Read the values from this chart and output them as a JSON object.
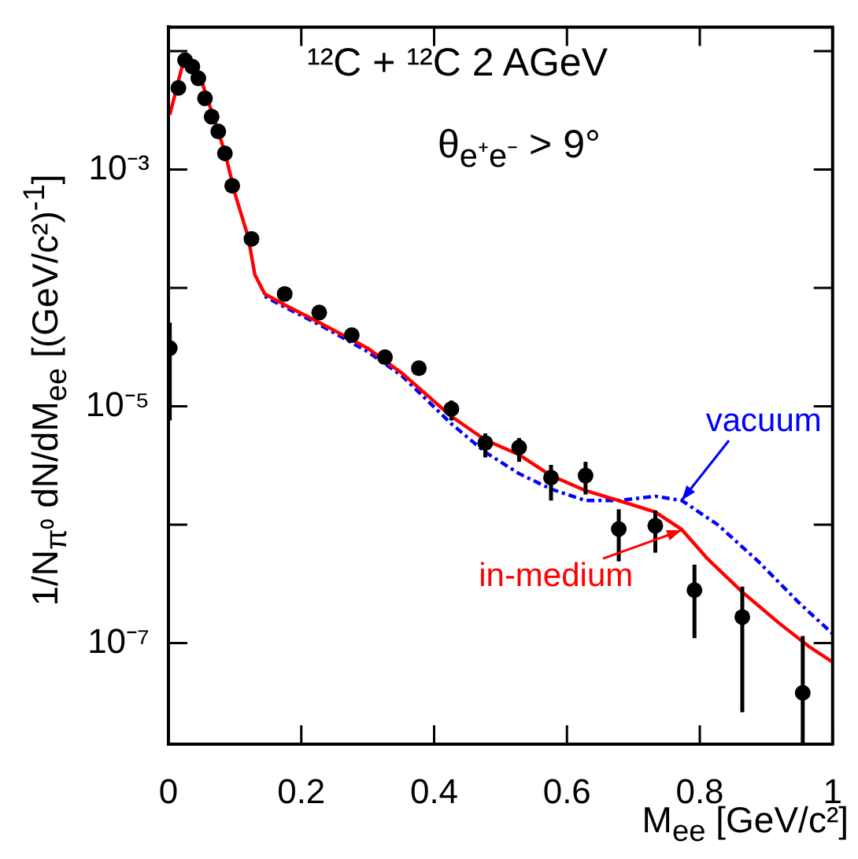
{
  "chart_data": {
    "type": "line",
    "title": "¹²C + ¹²C  2 AGeV",
    "subtitle": "θ$_{e⁺e⁻}$ > 9°",
    "xlabel": "M$_{ee}$ [GeV/c²]",
    "ylabel": "1/N$_{π⁰}$ dN/dM$_{ee}$ [(GeV/c²)$^{-1}$]",
    "log": "y",
    "legend": false,
    "annotations": [
      {
        "text": "in-medium",
        "x": 0.773,
        "y": 9.1e-07
      },
      {
        "text": "vacuum",
        "x": 0.773,
        "y": 1.6e-06
      }
    ],
    "xlim": [
      0,
      1
    ],
    "xticks": [
      0,
      0.2,
      0.4,
      0.6,
      0.8,
      1
    ],
    "ylim": [
      1.4e-08,
      0.016
    ],
    "yticks": [
      {
        "value": 0.01,
        "label": null
      },
      {
        "value": 0.001,
        "label": "10⁻³"
      },
      {
        "value": 0.0001,
        "label": null
      },
      {
        "value": 1e-05,
        "label": "10⁻⁵"
      },
      {
        "value": 1e-06,
        "label": null
      },
      {
        "value": 1e-07,
        "label": "10⁻⁷"
      }
    ],
    "series": [
      {
        "type": "scatter",
        "color": "#000000",
        "marker": "circle",
        "x": [
          0.002,
          0.015,
          0.025,
          0.036,
          0.045,
          0.055,
          0.065,
          0.075,
          0.085,
          0.096,
          0.125,
          0.175,
          0.227,
          0.276,
          0.326,
          0.377,
          0.426,
          0.477,
          0.528,
          0.576,
          0.628,
          0.678,
          0.733,
          0.792,
          0.864,
          0.955
        ],
        "values": [
          3.1e-05,
          0.0049,
          0.0084,
          0.0074,
          0.0059,
          0.004,
          0.0028,
          0.0021,
          0.00137,
          0.00073,
          0.00026,
          8.9e-05,
          6.2e-05,
          4e-05,
          2.6e-05,
          2.1e-05,
          9.5e-06,
          4.9e-06,
          4.5e-06,
          2.5e-06,
          2.6e-06,
          9.2e-07,
          9.8e-07,
          2.8e-07,
          1.66e-07,
          3.8e-08
        ],
        "errors": [
          [
            7.6e-06,
            5.1e-05
          ],
          null,
          null,
          null,
          null,
          null,
          null,
          null,
          null,
          null,
          null,
          null,
          null,
          null,
          null,
          null,
          [
            7.6e-06,
            1.12e-05
          ],
          [
            3.7e-06,
            5.9e-06
          ],
          [
            3.4e-06,
            5.4e-06
          ],
          [
            1.6e-06,
            3.2e-06
          ],
          [
            1.8e-06,
            3.4e-06
          ],
          [
            4.9e-07,
            1.35e-06
          ],
          [
            5.8e-07,
            1.32e-06
          ],
          [
            1.1e-07,
            4.6e-07
          ],
          [
            2.6e-08,
            3e-07
          ],
          [
            1.4e-08,
            1.15e-07
          ]
        ]
      },
      {
        "color": "#ff0000",
        "marker": "none",
        "line_style": "solid",
        "x": [
          0.002,
          0.022,
          0.05,
          0.085,
          0.1,
          0.12,
          0.13,
          0.145,
          0.175,
          0.227,
          0.3,
          0.352,
          0.425,
          0.477,
          0.528,
          0.576,
          0.628,
          0.678,
          0.733,
          0.773,
          0.811,
          0.864,
          0.919,
          0.965,
          1.0
        ],
        "values": [
          0.0029,
          0.008,
          0.0056,
          0.0014,
          0.00063,
          0.00027,
          0.00013,
          8.9e-05,
          7.2e-05,
          5.1e-05,
          3.1e-05,
          1.9e-05,
          8.3e-06,
          5.2e-06,
          3.9e-06,
          2.6e-06,
          1.94e-06,
          1.6e-06,
          1.28e-06,
          9.1e-07,
          5.2e-07,
          2.7e-07,
          1.48e-07,
          9.3e-08,
          6.9e-08
        ]
      },
      {
        "color": "#0000ff",
        "marker": "none",
        "line_style": "dotted",
        "x": [
          0.145,
          0.175,
          0.227,
          0.3,
          0.352,
          0.425,
          0.477,
          0.528,
          0.576,
          0.628,
          0.678,
          0.733,
          0.773,
          0.827,
          0.888,
          0.949,
          1.0
        ],
        "values": [
          8.5e-05,
          6.9e-05,
          4.9e-05,
          2.9e-05,
          1.8e-05,
          7.2e-06,
          4.1e-06,
          2.7e-06,
          2e-06,
          1.6e-06,
          1.6e-06,
          1.74e-06,
          1.6e-06,
          1e-06,
          4.9e-07,
          2.2e-07,
          1.2e-07
        ]
      }
    ]
  }
}
